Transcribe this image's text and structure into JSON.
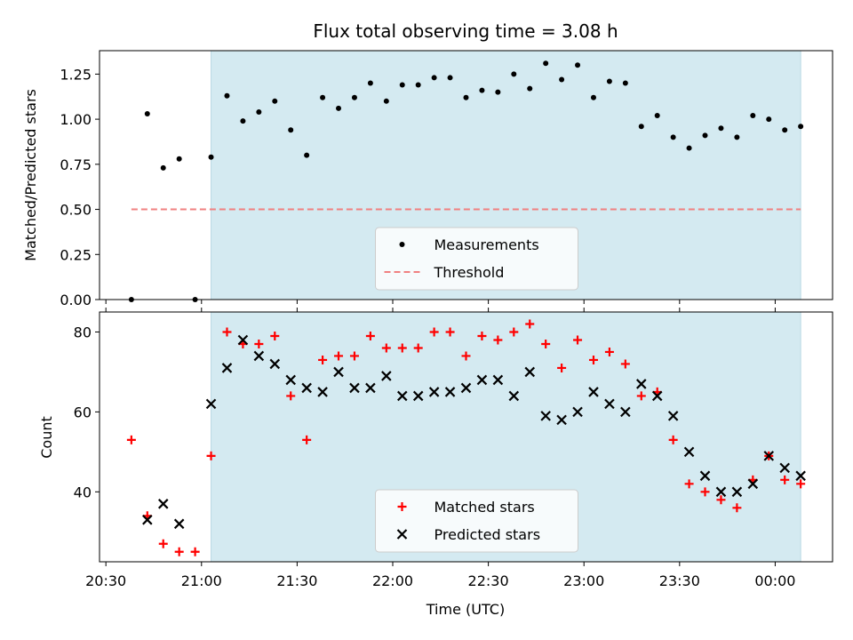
{
  "chart_data": {
    "type": "scatter",
    "title": "Flux total observing time = 3.08 h",
    "xlabel": "Time (UTC)",
    "x_ticks": [
      "20:30",
      "21:00",
      "21:30",
      "22:00",
      "22:30",
      "23:00",
      "23:30",
      "00:00"
    ],
    "x_tick_minutes": [
      0,
      30,
      60,
      90,
      120,
      150,
      180,
      210
    ],
    "xlim_minutes": [
      -2,
      228
    ],
    "shaded_region_minutes": [
      33,
      218
    ],
    "colors": {
      "shade": "#d4eaf1",
      "shade_edge": "#b9d9e5",
      "measurement": "#000000",
      "threshold": "#f08080",
      "matched": "#ff0000",
      "predicted": "#000000"
    },
    "times_minutes": [
      8,
      13,
      18,
      23,
      28,
      33,
      38,
      43,
      48,
      53,
      58,
      63,
      68,
      73,
      78,
      83,
      88,
      93,
      98,
      103,
      108,
      113,
      118,
      123,
      128,
      133,
      138,
      143,
      148,
      153,
      158,
      163,
      168,
      173,
      178,
      183,
      188,
      193,
      198,
      203,
      208,
      213,
      218
    ],
    "panels": [
      {
        "ylabel": "Matched/Predicted stars",
        "ylim": [
          0,
          1.38
        ],
        "y_ticks": [
          "0.00",
          "0.25",
          "0.50",
          "0.75",
          "1.00",
          "1.25"
        ],
        "y_tick_values": [
          0,
          0.25,
          0.5,
          0.75,
          1.0,
          1.25
        ],
        "threshold": {
          "name": "Threshold",
          "y": 0.5,
          "x_start_minutes": 8,
          "x_end_minutes": 218
        },
        "series": [
          {
            "name": "Measurements",
            "marker": "dot",
            "values": [
              0.0,
              1.03,
              0.73,
              0.78,
              0.0,
              0.79,
              1.13,
              0.99,
              1.04,
              1.1,
              0.94,
              0.8,
              1.12,
              1.06,
              1.12,
              1.2,
              1.1,
              1.19,
              1.19,
              1.23,
              1.23,
              1.12,
              1.16,
              1.15,
              1.25,
              1.17,
              1.31,
              1.22,
              1.3,
              1.12,
              1.21,
              1.2,
              0.96,
              1.02,
              0.9,
              0.84,
              0.91,
              0.95,
              0.9,
              1.02,
              1.0,
              0.94,
              0.96
            ]
          }
        ],
        "legend": {
          "placement": "lower center",
          "entries": [
            "Measurements",
            "Threshold"
          ]
        }
      },
      {
        "ylabel": "Count",
        "ylim": [
          22.5,
          85
        ],
        "y_ticks": [
          "40",
          "60",
          "80"
        ],
        "y_tick_values": [
          40,
          60,
          80
        ],
        "series": [
          {
            "name": "Matched stars",
            "marker": "plus",
            "values": [
              53,
              34,
              27,
              25,
              25,
              49,
              80,
              77,
              77,
              79,
              64,
              53,
              73,
              74,
              74,
              79,
              76,
              76,
              76,
              80,
              80,
              74,
              79,
              78,
              80,
              82,
              77,
              71,
              78,
              73,
              75,
              72,
              64,
              65,
              53,
              42,
              40,
              38,
              36,
              43,
              49,
              43,
              42
            ]
          },
          {
            "name": "Predicted stars",
            "marker": "x",
            "values": [
              null,
              33,
              37,
              32,
              null,
              62,
              71,
              78,
              74,
              72,
              68,
              66,
              65,
              70,
              66,
              66,
              69,
              64,
              64,
              65,
              65,
              66,
              68,
              68,
              64,
              70,
              59,
              58,
              60,
              65,
              62,
              60,
              67,
              64,
              59,
              50,
              44,
              40,
              40,
              42,
              49,
              46,
              44
            ]
          }
        ],
        "legend": {
          "placement": "lower center",
          "entries": [
            "Matched stars",
            "Predicted stars"
          ]
        }
      }
    ]
  }
}
